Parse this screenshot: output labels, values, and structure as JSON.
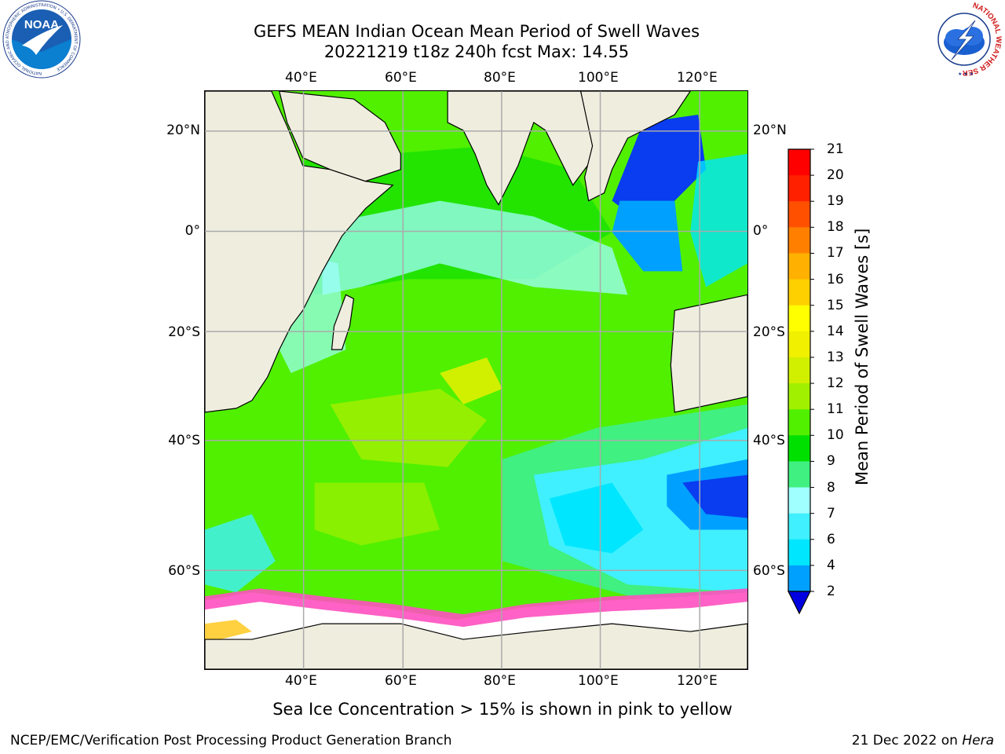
{
  "title": {
    "line1": "GEFS MEAN Indian Ocean Mean Period of Swell Waves",
    "line2": "20221219 t18z 240h fcst   Max: 14.55"
  },
  "map": {
    "lon_labels": [
      "40°E",
      "60°E",
      "80°E",
      "100°E",
      "120°E"
    ],
    "lat_labels": [
      "20°N",
      "0°",
      "20°S",
      "40°S",
      "60°S"
    ],
    "lon_range": [
      20,
      130
    ],
    "lat_range": [
      -73,
      28
    ]
  },
  "colorbar": {
    "label": "Mean Period of Swell Waves [s]",
    "ticks": [
      "2",
      "4",
      "6",
      "7",
      "8",
      "9",
      "10",
      "11",
      "12",
      "13",
      "14",
      "15",
      "16",
      "17",
      "18",
      "19",
      "20",
      "21"
    ],
    "colors": [
      "#0a3cf0",
      "#00a0ff",
      "#00e6ff",
      "#40f0ff",
      "#a0ffff",
      "#40f080",
      "#00e000",
      "#50f000",
      "#a0f000",
      "#d0f000",
      "#f0f000",
      "#ffff00",
      "#ffd000",
      "#ffb000",
      "#ff8000",
      "#ff5000",
      "#ff2000",
      "#ff0000"
    ],
    "extend_color": "#0000e0"
  },
  "caption": "Sea Ice Concentration > 15% is shown in pink to yellow",
  "footer": {
    "left": "NCEP/EMC/Verification Post Processing Product Generation Branch",
    "date": "21 Dec 2022 on ",
    "machine": "Hera"
  },
  "logos": {
    "noaa_text": "NOAA",
    "noaa_ring": "NATIONAL OCEANIC AND ATMOSPHERIC ADMINISTRATION • U.S. DEPARTMENT OF COMMERCE",
    "nws_ring": "NATIONAL WEATHER SERVICE"
  }
}
